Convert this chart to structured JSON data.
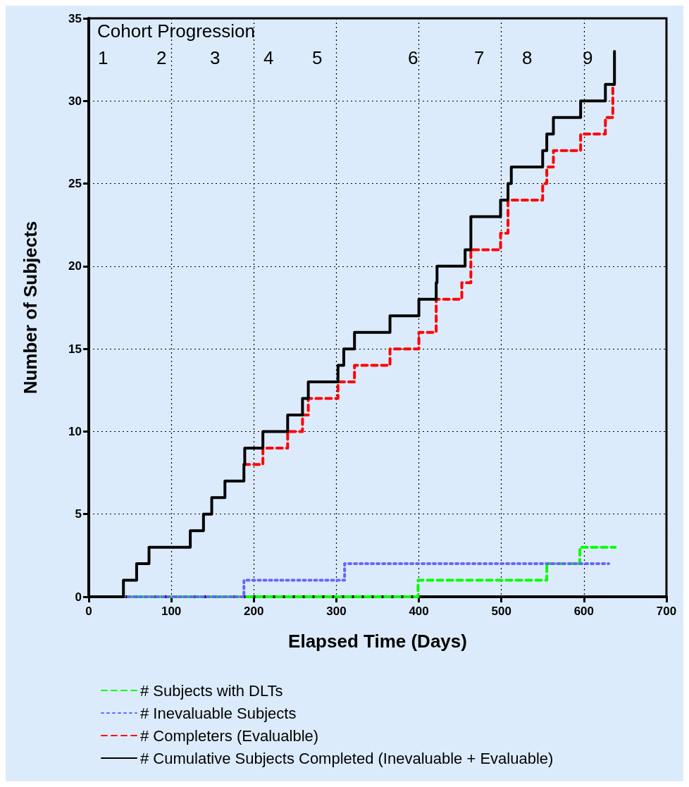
{
  "chart_data": {
    "type": "step",
    "xlabel": "Elapsed Time (Days)",
    "ylabel": "Number of Subjects",
    "xlim": [
      0,
      700
    ],
    "xticks": [
      0,
      100,
      200,
      300,
      400,
      500,
      600,
      700
    ],
    "ylim": [
      0,
      35
    ],
    "yticks": [
      0,
      5,
      10,
      15,
      20,
      25,
      30,
      35
    ],
    "grid": true,
    "legend": "bottom",
    "marker": "none",
    "annotations": [
      "Cohort Progression",
      "1",
      "2",
      "3",
      "4",
      "5",
      "6",
      "7",
      "8",
      "9"
    ],
    "series": [
      {
        "name": "# Subjects with DLTs",
        "color": "#00ff00",
        "line_style": "dashed",
        "x": [
          0,
          399,
          555,
          595,
          638
        ],
        "values": [
          0,
          1,
          2,
          3,
          3
        ]
      },
      {
        "name": "# Inevaluable Subjects",
        "color": "#6666ff",
        "line_style": "dotted",
        "x": [
          0,
          188,
          310,
          630
        ],
        "values": [
          0,
          1,
          2,
          2
        ]
      },
      {
        "name": "# Completers (Evalualble)",
        "color": "#ff0000",
        "line_style": "dashed",
        "x": [
          188,
          211,
          241,
          259,
          266,
          302,
          322,
          365,
          400,
          421,
          452,
          463,
          499,
          508,
          550,
          555,
          563,
          596,
          626,
          635,
          637
        ],
        "values": [
          8,
          9,
          10,
          11,
          12,
          13,
          14,
          15,
          16,
          18,
          19,
          21,
          22,
          24,
          25,
          26,
          27,
          28,
          29,
          31,
          31
        ]
      },
      {
        "name": "# Cumulative Subjects Completed (Inevaluable + Evaluable)",
        "color": "#000000",
        "line_style": "solid",
        "x": [
          0,
          42,
          58,
          73,
          123,
          139,
          149,
          165,
          188,
          189,
          211,
          241,
          259,
          266,
          302,
          309,
          322,
          365,
          400,
          421,
          422,
          456,
          463,
          499,
          508,
          512,
          550,
          555,
          563,
          596,
          626,
          637
        ],
        "values": [
          0,
          1,
          2,
          3,
          4,
          5,
          6,
          7,
          8,
          9,
          10,
          11,
          12,
          13,
          14,
          15,
          16,
          17,
          18,
          19,
          20,
          21,
          23,
          24,
          25,
          26,
          27,
          28,
          29,
          30,
          31,
          33
        ]
      }
    ]
  }
}
